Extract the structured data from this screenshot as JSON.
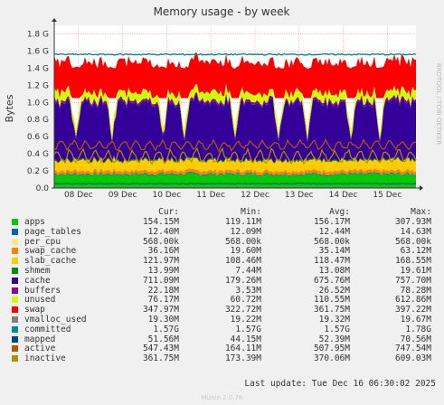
{
  "chart_data": {
    "type": "area",
    "title": "Memory usage - by week",
    "ylabel": "Bytes",
    "ylim": [
      0,
      1.9
    ],
    "y_unit": "G",
    "y_ticks": [
      "0.0",
      "0.2 G",
      "0.4 G",
      "0.6 G",
      "0.8 G",
      "1.0 G",
      "1.2 G",
      "1.4 G",
      "1.6 G",
      "1.8 G"
    ],
    "x_ticks": [
      "08 Dec",
      "09 Dec",
      "10 Dec",
      "11 Dec",
      "12 Dec",
      "13 Dec",
      "14 Dec",
      "15 Dec"
    ],
    "grid": true,
    "side_label": "RRDTOOL / TOBI OETIKER",
    "stack_order": [
      "apps",
      "page_tables",
      "per_cpu",
      "swap_cache",
      "slab_cache",
      "shmem",
      "cache",
      "buffers",
      "unused"
    ],
    "line_order": [
      "swap",
      "committed",
      "mapped",
      "active",
      "inactive"
    ],
    "series": [
      {
        "name": "apps",
        "color": "#00cc00",
        "cur": "154.15M",
        "min": "119.11M",
        "avg": "156.17M",
        "max": "307.93M",
        "avg_g": 0.156
      },
      {
        "name": "page_tables",
        "color": "#0066b3",
        "cur": "12.40M",
        "min": "12.09M",
        "avg": "12.44M",
        "max": "14.63M",
        "avg_g": 0.012
      },
      {
        "name": "per_cpu",
        "color": "#ffe680",
        "cur": "568.00k",
        "min": "568.00k",
        "avg": "568.00k",
        "max": "568.00k",
        "avg_g": 0.001
      },
      {
        "name": "swap_cache",
        "color": "#ff8000",
        "cur": "36.16M",
        "min": "19.60M",
        "avg": "35.14M",
        "max": "63.12M",
        "avg_g": 0.035
      },
      {
        "name": "slab_cache",
        "color": "#ffcc00",
        "cur": "121.97M",
        "min": "108.46M",
        "avg": "118.47M",
        "max": "168.55M",
        "avg_g": 0.118
      },
      {
        "name": "shmem",
        "color": "#008f00",
        "cur": "13.99M",
        "min": "7.44M",
        "avg": "13.08M",
        "max": "19.61M",
        "avg_g": 0.013
      },
      {
        "name": "cache",
        "color": "#330099",
        "cur": "711.09M",
        "min": "179.26M",
        "avg": "675.76M",
        "max": "757.70M",
        "avg_g": 0.676
      },
      {
        "name": "buffers",
        "color": "#990099",
        "cur": "22.18M",
        "min": "3.53M",
        "avg": "26.52M",
        "max": "78.28M",
        "avg_g": 0.027
      },
      {
        "name": "unused",
        "color": "#ccff00",
        "cur": "76.17M",
        "min": "60.72M",
        "avg": "110.55M",
        "max": "612.86M",
        "avg_g": 0.111
      },
      {
        "name": "swap",
        "color": "#ff0000",
        "cur": "347.97M",
        "min": "322.72M",
        "avg": "361.75M",
        "max": "397.22M",
        "avg_g": 0.362
      },
      {
        "name": "vmalloc_used",
        "color": "#808080",
        "cur": "19.30M",
        "min": "19.22M",
        "avg": "19.32M",
        "max": "19.67M",
        "avg_g": 0.019
      },
      {
        "name": "committed",
        "color": "#008f8f",
        "cur": "1.57G",
        "min": "1.57G",
        "avg": "1.57G",
        "max": "1.78G",
        "avg_g": 1.57
      },
      {
        "name": "mapped",
        "color": "#00487d",
        "cur": "51.56M",
        "min": "44.15M",
        "avg": "52.39M",
        "max": "70.56M",
        "avg_g": 0.052
      },
      {
        "name": "active",
        "color": "#b35a00",
        "cur": "547.43M",
        "min": "164.11M",
        "avg": "507.95M",
        "max": "747.54M",
        "avg_g": 0.508
      },
      {
        "name": "inactive",
        "color": "#b38f00",
        "cur": "361.75M",
        "min": "173.39M",
        "avg": "370.06M",
        "max": "609.03M",
        "avg_g": 0.37
      }
    ]
  },
  "legend_headers": {
    "cur": "Cur:",
    "min": "Min:",
    "avg": "Avg:",
    "max": "Max:"
  },
  "footer": {
    "last_update": "Last update: Tue Dec 16 06:30:02 2025",
    "munin": "Munin 2.0.76"
  },
  "colors": {
    "background": "#f0f0f0",
    "plot_bg": "#ffffff",
    "grid": "#ff9999"
  }
}
